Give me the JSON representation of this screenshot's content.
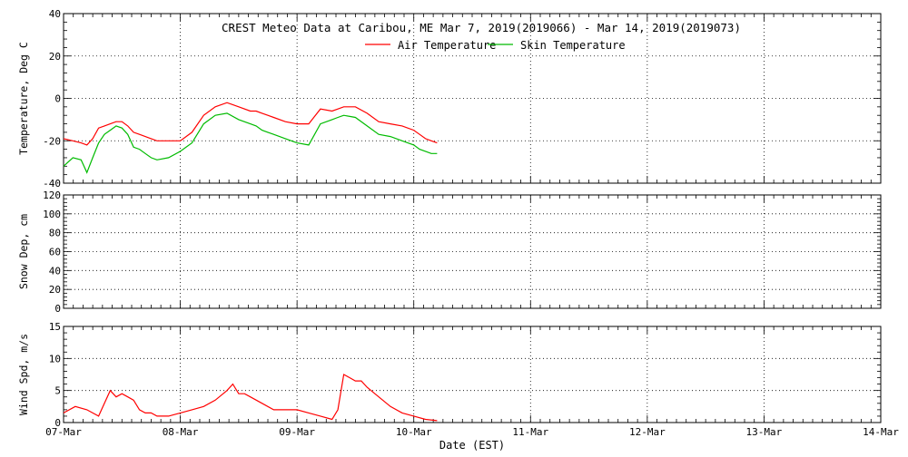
{
  "chart_data": {
    "type": "line",
    "title": "CREST Meteo Data at Caribou, ME   Mar  7, 2019(2019066) - Mar 14, 2019(2019073)",
    "xlabel": "Date (EST)",
    "x_ticks": [
      "07-Mar",
      "08-Mar",
      "09-Mar",
      "10-Mar",
      "11-Mar",
      "12-Mar",
      "13-Mar",
      "14-Mar"
    ],
    "x_range_days": [
      0,
      7
    ],
    "grid": true,
    "colors": {
      "air": "#ff0000",
      "skin": "#00bb00",
      "wind": "#ff0000"
    },
    "panels": [
      {
        "id": "temperature",
        "ylabel": "Temperature, Deg C",
        "ylim": [
          -40,
          40
        ],
        "y_ticks": [
          "-40",
          "-20",
          "0",
          "20",
          "40"
        ],
        "legend_position": "top-center",
        "series": [
          {
            "name": "Air Temperature",
            "color": "#ff0000",
            "x": [
              0,
              0.08,
              0.15,
              0.2,
              0.25,
              0.3,
              0.35,
              0.4,
              0.45,
              0.5,
              0.55,
              0.6,
              0.65,
              0.7,
              0.75,
              0.8,
              0.9,
              1.0,
              1.1,
              1.2,
              1.3,
              1.4,
              1.5,
              1.6,
              1.65,
              1.7,
              1.75,
              1.8,
              1.9,
              2.0,
              2.1,
              2.2,
              2.3,
              2.35,
              2.4,
              2.5,
              2.6,
              2.7,
              2.8,
              2.9,
              3.0,
              3.05,
              3.1,
              3.15,
              3.2
            ],
            "y": [
              -19,
              -20,
              -21,
              -22,
              -19,
              -14,
              -13,
              -12,
              -11,
              -11,
              -13,
              -16,
              -17,
              -18,
              -19,
              -20,
              -20,
              -20,
              -16,
              -8,
              -4,
              -2,
              -4,
              -6,
              -6,
              -7,
              -8,
              -9,
              -11,
              -12,
              -12,
              -5,
              -6,
              -5,
              -4,
              -4,
              -7,
              -11,
              -12,
              -13,
              -15,
              -17,
              -19,
              -20,
              -21
            ]
          },
          {
            "name": "Skin Temperature",
            "color": "#00bb00",
            "x": [
              0,
              0.08,
              0.15,
              0.2,
              0.25,
              0.3,
              0.35,
              0.4,
              0.45,
              0.5,
              0.55,
              0.6,
              0.65,
              0.7,
              0.75,
              0.8,
              0.9,
              1.0,
              1.1,
              1.2,
              1.3,
              1.4,
              1.5,
              1.6,
              1.65,
              1.7,
              1.75,
              1.8,
              1.9,
              2.0,
              2.1,
              2.2,
              2.3,
              2.35,
              2.4,
              2.5,
              2.6,
              2.7,
              2.8,
              2.9,
              3.0,
              3.05,
              3.1,
              3.15,
              3.2
            ],
            "y": [
              -32,
              -28,
              -29,
              -35,
              -28,
              -21,
              -17,
              -15,
              -13,
              -14,
              -17,
              -23,
              -24,
              -26,
              -28,
              -29,
              -28,
              -25,
              -21,
              -12,
              -8,
              -7,
              -10,
              -12,
              -13,
              -15,
              -16,
              -17,
              -19,
              -21,
              -22,
              -12,
              -10,
              -9,
              -8,
              -9,
              -13,
              -17,
              -18,
              -20,
              -22,
              -24,
              -25,
              -26,
              -26
            ]
          }
        ]
      },
      {
        "id": "snow",
        "ylabel": "Snow Dep, cm",
        "ylim": [
          0,
          120
        ],
        "y_ticks": [
          "0",
          "20",
          "40",
          "60",
          "80",
          "100",
          "120"
        ],
        "series": []
      },
      {
        "id": "wind",
        "ylabel": "Wind Spd, m/s",
        "ylim": [
          0,
          15
        ],
        "y_ticks": [
          "0",
          "5",
          "10",
          "15"
        ],
        "series": [
          {
            "color": "#ff0000",
            "x": [
              0,
              0.1,
              0.2,
              0.3,
              0.35,
              0.4,
              0.45,
              0.5,
              0.55,
              0.6,
              0.65,
              0.7,
              0.75,
              0.8,
              0.9,
              1.0,
              1.1,
              1.2,
              1.3,
              1.4,
              1.45,
              1.5,
              1.55,
              1.6,
              1.7,
              1.8,
              1.9,
              2.0,
              2.1,
              2.2,
              2.3,
              2.35,
              2.4,
              2.45,
              2.5,
              2.55,
              2.6,
              2.7,
              2.8,
              2.9,
              3.0,
              3.1,
              3.2
            ],
            "y": [
              1.5,
              2.5,
              2.0,
              1.0,
              3.0,
              5.0,
              4.0,
              4.5,
              4.0,
              3.5,
              2.0,
              1.5,
              1.5,
              1.0,
              1.0,
              1.5,
              2.0,
              2.5,
              3.5,
              5.0,
              6.0,
              4.5,
              4.5,
              4.0,
              3.0,
              2.0,
              2.0,
              2.0,
              1.5,
              1.0,
              0.5,
              2.0,
              7.5,
              7.0,
              6.5,
              6.5,
              5.5,
              4.0,
              2.5,
              1.5,
              1.0,
              0.5,
              0.3
            ]
          }
        ]
      }
    ]
  }
}
